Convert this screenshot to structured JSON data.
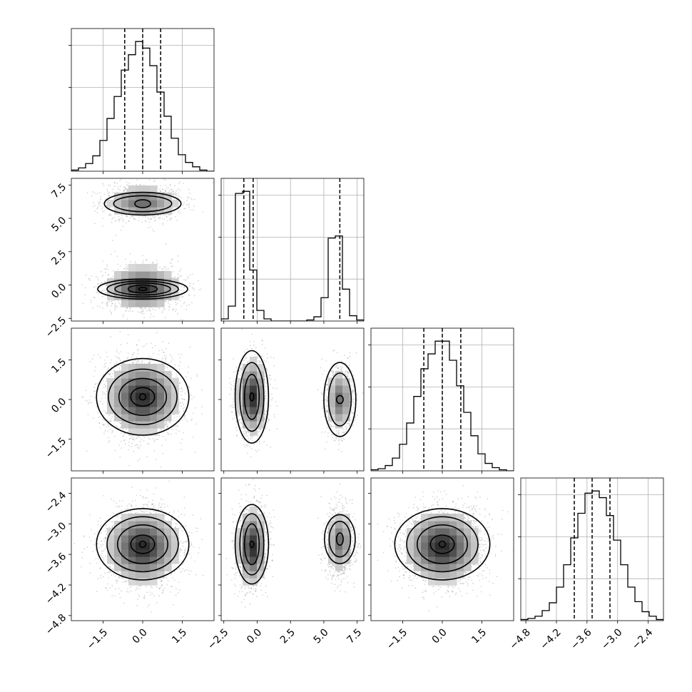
{
  "chart_data": {
    "type": "corner",
    "grid": true,
    "axis_ranges": [
      [
        -2.7,
        2.7
      ],
      [
        -2.7,
        8.0
      ],
      [
        -2.7,
        2.7
      ],
      [
        -4.9,
        -2.1
      ]
    ],
    "ticks": [
      {
        "values": [
          -1.5,
          0.0,
          1.5
        ],
        "labels": [
          "−1.5",
          "0.0",
          "1.5"
        ]
      },
      {
        "values": [
          -2.5,
          0.0,
          2.5,
          5.0,
          7.5
        ],
        "labels": [
          "−2.5",
          "0.0",
          "2.5",
          "5.0",
          "7.5"
        ]
      },
      {
        "values": [
          -1.5,
          0.0,
          1.5
        ],
        "labels": [
          "−1.5",
          "0.0",
          "1.5"
        ]
      },
      {
        "values": [
          -4.8,
          -4.2,
          -3.6,
          -3.0,
          -2.4
        ],
        "labels": [
          "−4.8",
          "−4.2",
          "−3.6",
          "−3.0",
          "−2.4"
        ]
      }
    ],
    "quantiles": [
      [
        -0.68,
        0.0,
        0.68
      ],
      [
        -1.0,
        -0.3,
        6.2
      ],
      [
        -0.7,
        0.0,
        0.7
      ],
      [
        -3.85,
        -3.5,
        -3.15
      ]
    ],
    "histograms": [
      {
        "edges": [
          -2.7,
          -2.43,
          -2.16,
          -1.89,
          -1.62,
          -1.35,
          -1.08,
          -0.81,
          -0.54,
          -0.27,
          0.0,
          0.27,
          0.54,
          0.81,
          1.08,
          1.35,
          1.62,
          1.89,
          2.16,
          2.43,
          2.7
        ],
        "counts": [
          1,
          3,
          7,
          14,
          28,
          48,
          68,
          92,
          106,
          118,
          112,
          96,
          72,
          50,
          30,
          15,
          8,
          4,
          1,
          0
        ]
      },
      {
        "edges": [
          -2.7,
          -2.165,
          -1.63,
          -1.095,
          -0.56,
          -0.025,
          0.51,
          1.045,
          1.58,
          2.115,
          2.65,
          3.185,
          3.72,
          4.255,
          4.79,
          5.325,
          5.86,
          6.395,
          6.93,
          7.465,
          8.0
        ],
        "counts": [
          2,
          14,
          120,
          122,
          48,
          10,
          2,
          0,
          0,
          0,
          0,
          0,
          1,
          4,
          22,
          78,
          80,
          30,
          5,
          1
        ]
      },
      {
        "edges": [
          -2.7,
          -2.43,
          -2.16,
          -1.89,
          -1.62,
          -1.35,
          -1.08,
          -0.81,
          -0.54,
          -0.27,
          0.0,
          0.27,
          0.54,
          0.81,
          1.08,
          1.35,
          1.62,
          1.89,
          2.16,
          2.43,
          2.7
        ],
        "counts": [
          1,
          2,
          5,
          12,
          25,
          45,
          70,
          96,
          110,
          122,
          122,
          104,
          80,
          55,
          33,
          16,
          7,
          3,
          1,
          0
        ]
      },
      {
        "edges": [
          -4.9,
          -4.76,
          -4.62,
          -4.48,
          -4.34,
          -4.2,
          -4.06,
          -3.92,
          -3.78,
          -3.64,
          -3.5,
          -3.36,
          -3.22,
          -3.08,
          -2.94,
          -2.8,
          -2.66,
          -2.52,
          -2.38,
          -2.24,
          -2.1
        ],
        "counts": [
          1,
          2,
          4,
          9,
          16,
          30,
          50,
          74,
          96,
          114,
          116,
          110,
          94,
          72,
          50,
          30,
          17,
          8,
          4,
          1
        ]
      }
    ],
    "density_peaks": [
      [
        {
          "cx": 0.0,
          "cy": -0.2,
          "sx": 0.7,
          "sy": 0.8,
          "weight": 0.6
        },
        {
          "cx": 0.0,
          "cy": 6.2,
          "sx": 0.7,
          "sy": 0.65,
          "weight": 0.4
        }
      ],
      [
        {
          "cx": 0.0,
          "cy": 0.1,
          "sx": 0.7,
          "sy": 0.7,
          "weight": 1.0
        }
      ],
      [
        {
          "cx": -0.4,
          "cy": 0.1,
          "sx": 0.55,
          "sy": 0.72,
          "weight": 0.6
        },
        {
          "cx": 6.2,
          "cy": 0.0,
          "sx": 0.5,
          "sy": 0.6,
          "weight": 0.4
        }
      ],
      [
        {
          "cx": 0.0,
          "cy": -3.45,
          "sx": 0.7,
          "sy": 0.36,
          "weight": 1.0
        }
      ],
      [
        {
          "cx": -0.4,
          "cy": -3.45,
          "sx": 0.55,
          "sy": 0.38,
          "weight": 0.6
        },
        {
          "cx": 6.2,
          "cy": -3.35,
          "sx": 0.5,
          "sy": 0.32,
          "weight": 0.4
        }
      ],
      [
        {
          "cx": 0.0,
          "cy": -3.45,
          "sx": 0.72,
          "sy": 0.36,
          "weight": 1.0
        }
      ]
    ],
    "contours": [
      [
        {
          "cx": 0.0,
          "cy": -0.3,
          "rx": [
            1.7,
            1.35,
            1.05,
            0.55,
            0.15
          ],
          "ry": [
            0.75,
            0.6,
            0.45,
            0.3,
            0.12
          ]
        },
        {
          "cx": 0.0,
          "cy": 6.1,
          "rx": [
            1.45,
            1.1,
            0.3
          ],
          "ry": [
            0.85,
            0.6,
            0.3
          ]
        }
      ],
      [
        {
          "cx": 0.0,
          "cy": 0.1,
          "rx": [
            1.75,
            1.3,
            0.9,
            0.45,
            0.12
          ],
          "ry": [
            1.45,
            1.05,
            0.7,
            0.35,
            0.12
          ]
        }
      ],
      [
        {
          "cx": -0.4,
          "cy": 0.1,
          "rx": [
            1.25,
            0.9,
            0.55,
            0.15
          ],
          "ry": [
            1.75,
            1.3,
            0.85,
            0.15
          ]
        },
        {
          "cx": 6.2,
          "cy": 0.0,
          "rx": [
            1.2,
            0.85,
            0.25
          ],
          "ry": [
            1.4,
            1.0,
            0.15
          ]
        }
      ],
      [
        {
          "cx": 0.0,
          "cy": -3.4,
          "rx": [
            1.75,
            1.35,
            0.95,
            0.45,
            0.12
          ],
          "ry": [
            0.7,
            0.54,
            0.38,
            0.18,
            0.06
          ]
        }
      ],
      [
        {
          "cx": -0.4,
          "cy": -3.4,
          "rx": [
            1.25,
            0.9,
            0.55,
            0.15
          ],
          "ry": [
            0.78,
            0.6,
            0.4,
            0.06
          ]
        },
        {
          "cx": 6.2,
          "cy": -3.3,
          "rx": [
            1.15,
            0.8,
            0.25
          ],
          "ry": [
            0.48,
            0.35,
            0.12
          ]
        }
      ],
      [
        {
          "cx": 0.0,
          "cy": -3.4,
          "rx": [
            1.8,
            1.35,
            0.95,
            0.45,
            0.12
          ],
          "ry": [
            0.7,
            0.54,
            0.38,
            0.18,
            0.06
          ]
        }
      ]
    ]
  }
}
